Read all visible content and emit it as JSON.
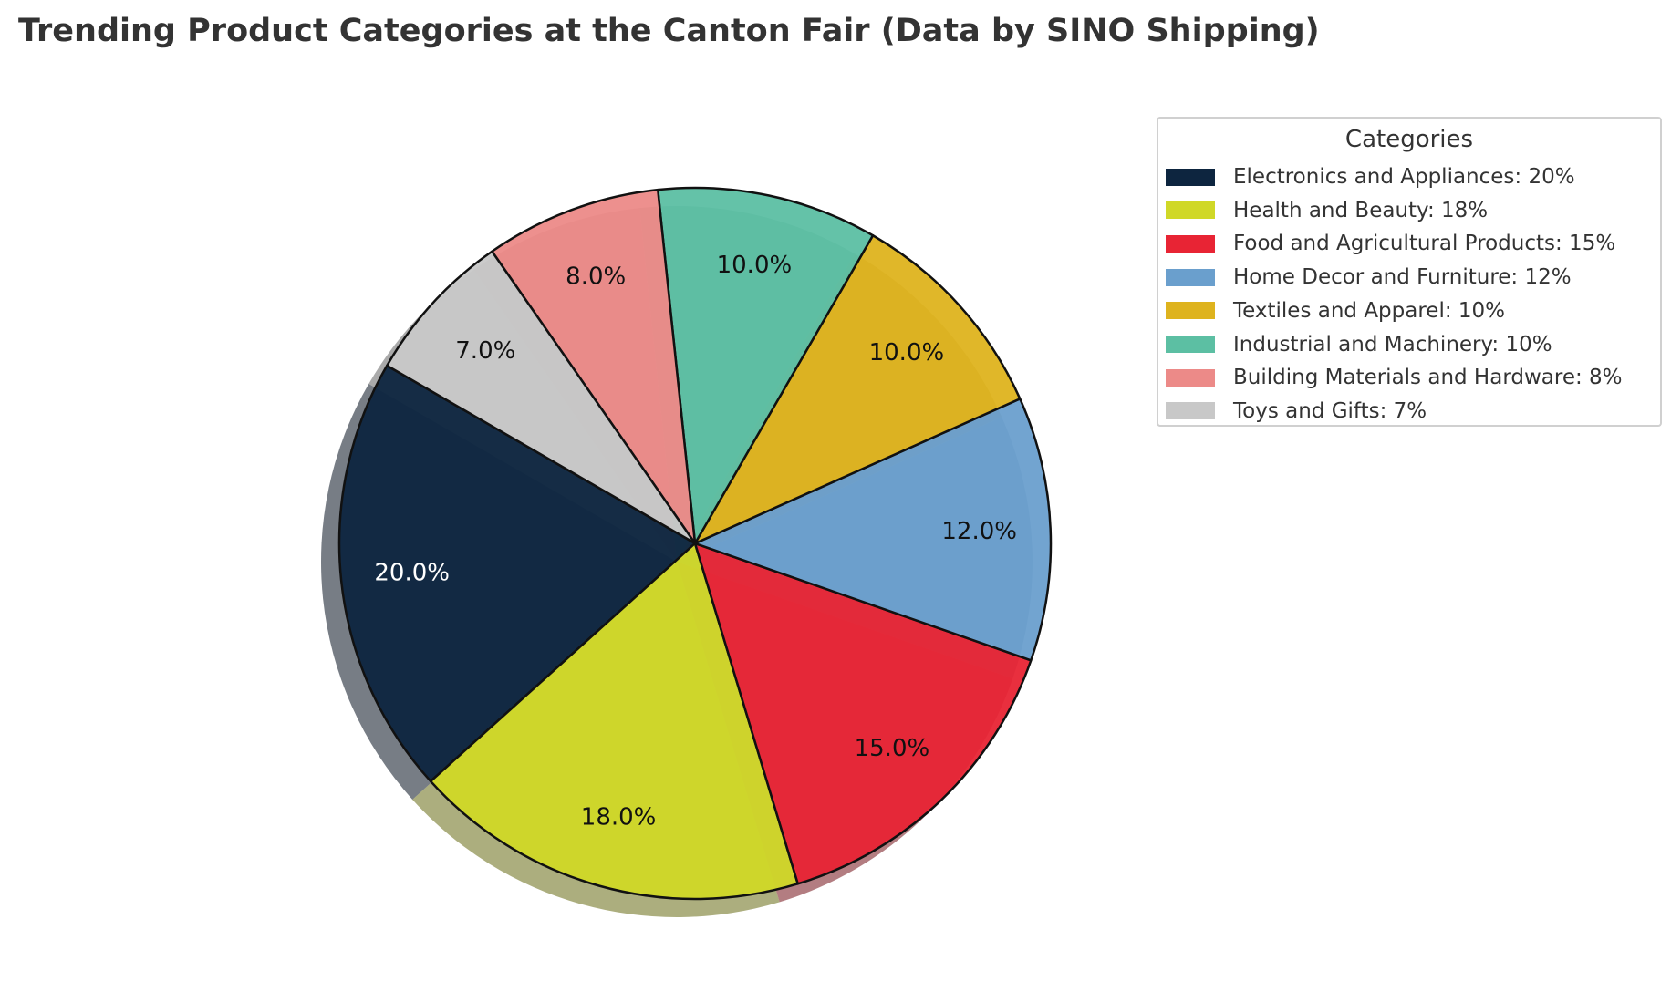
{
  "title": "Trending Product Categories at the Canton Fair (Data by SINO Shipping)",
  "chart_data": {
    "type": "pie",
    "title": "Trending Product Categories at the Canton Fair (Data by SINO Shipping)",
    "legend_title": "Categories",
    "legend_position": "top-right",
    "start_angle_deg": 150,
    "direction": "counterclockwise",
    "shadow": true,
    "categories": [
      "Electronics and Appliances",
      "Health and Beauty",
      "Food and Agricultural Products",
      "Home Decor and Furniture",
      "Textiles and Apparel",
      "Industrial and Machinery",
      "Building Materials and Hardware",
      "Toys and Gifts"
    ],
    "values": [
      20,
      18,
      15,
      12,
      10,
      10,
      8,
      7
    ],
    "slice_labels": [
      "20.0%",
      "18.0%",
      "15.0%",
      "12.0%",
      "10.0%",
      "10.0%",
      "8.0%",
      "7.0%"
    ],
    "legend_labels": [
      "Electronics and Appliances: 20%",
      "Health and Beauty: 18%",
      "Food and Agricultural Products: 15%",
      "Home Decor and Furniture: 12%",
      "Textiles and Apparel: 10%",
      "Industrial and Machinery: 10%",
      "Building Materials and Hardware: 8%",
      "Toys and Gifts: 7%"
    ],
    "colors": [
      "#0d253f",
      "#d0d827",
      "#e82434",
      "#6a9fcd",
      "#deb31e",
      "#5cbfa3",
      "#ec8a88",
      "#c8c8c8"
    ],
    "label_colors": [
      "#ffffff",
      "#111111",
      "#111111",
      "#111111",
      "#111111",
      "#111111",
      "#111111",
      "#111111"
    ]
  }
}
